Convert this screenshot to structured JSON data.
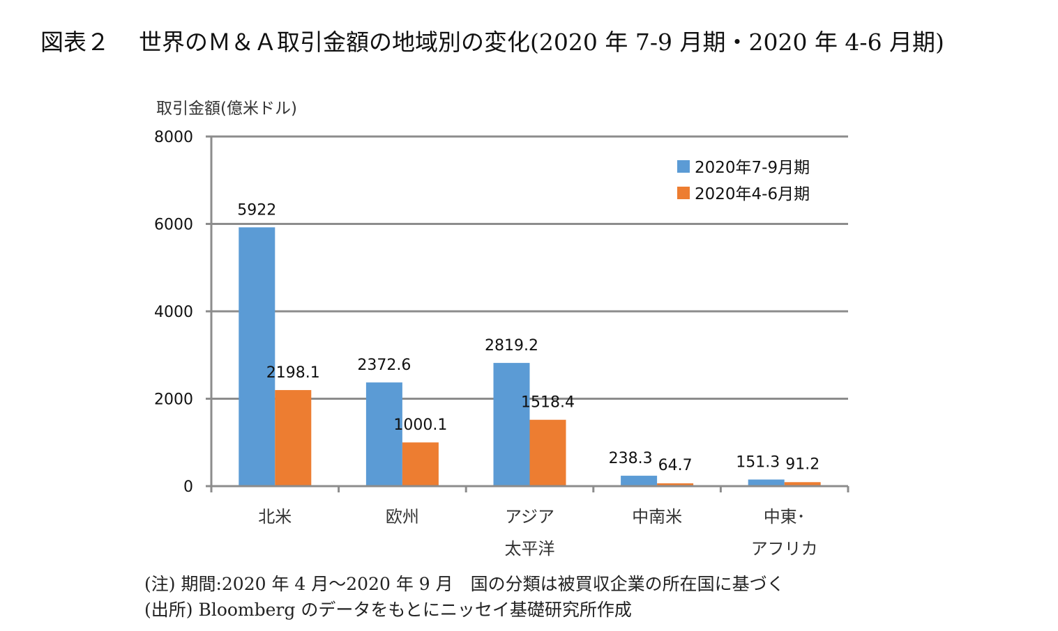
{
  "page": {
    "title_number": "図表２",
    "title_text": "世界のＭ＆Ａ取引金額の地域別の変化(2020 年 7-9 月期・2020 年 4-6 月期)",
    "note": "(注) 期間:2020 年 4 月～2020 年 9 月　国の分類は被買収企業の所在国に基づく",
    "source": "(出所) Bloomberg のデータをもとにニッセイ基礎研究所作成"
  },
  "chart_data": {
    "type": "bar",
    "title": "世界のＭ＆Ａ取引金額の地域別の変化(2020 年 7-9 月期・2020 年 4-6 月期)",
    "xlabel": "",
    "ylabel": "取引金額(億米ドル)",
    "ylim": [
      0,
      8000
    ],
    "yticks": [
      0,
      2000,
      4000,
      6000,
      8000
    ],
    "ytick_labels": [
      "0",
      "2000",
      "4000",
      "6000",
      "8000"
    ],
    "grid": true,
    "legend_position": "top-right",
    "categories": [
      [
        "北米"
      ],
      [
        "欧州"
      ],
      [
        "アジア",
        "太平洋"
      ],
      [
        "中南米"
      ],
      [
        "中東･",
        "アフリカ"
      ]
    ],
    "series": [
      {
        "name": "2020年7-9月期",
        "color": "#5b9bd5",
        "values": [
          5922,
          2372.6,
          2819.2,
          238.3,
          151.3
        ],
        "labels": [
          "5922",
          "2372.6",
          "2819.2",
          "238.3",
          "151.3"
        ]
      },
      {
        "name": "2020年4-6月期",
        "color": "#ed7d31",
        "values": [
          2198.1,
          1000.1,
          1518.4,
          64.7,
          91.2
        ],
        "labels": [
          "2198.1",
          "1000.1",
          "1518.4",
          "64.7",
          "91.2"
        ]
      }
    ]
  }
}
